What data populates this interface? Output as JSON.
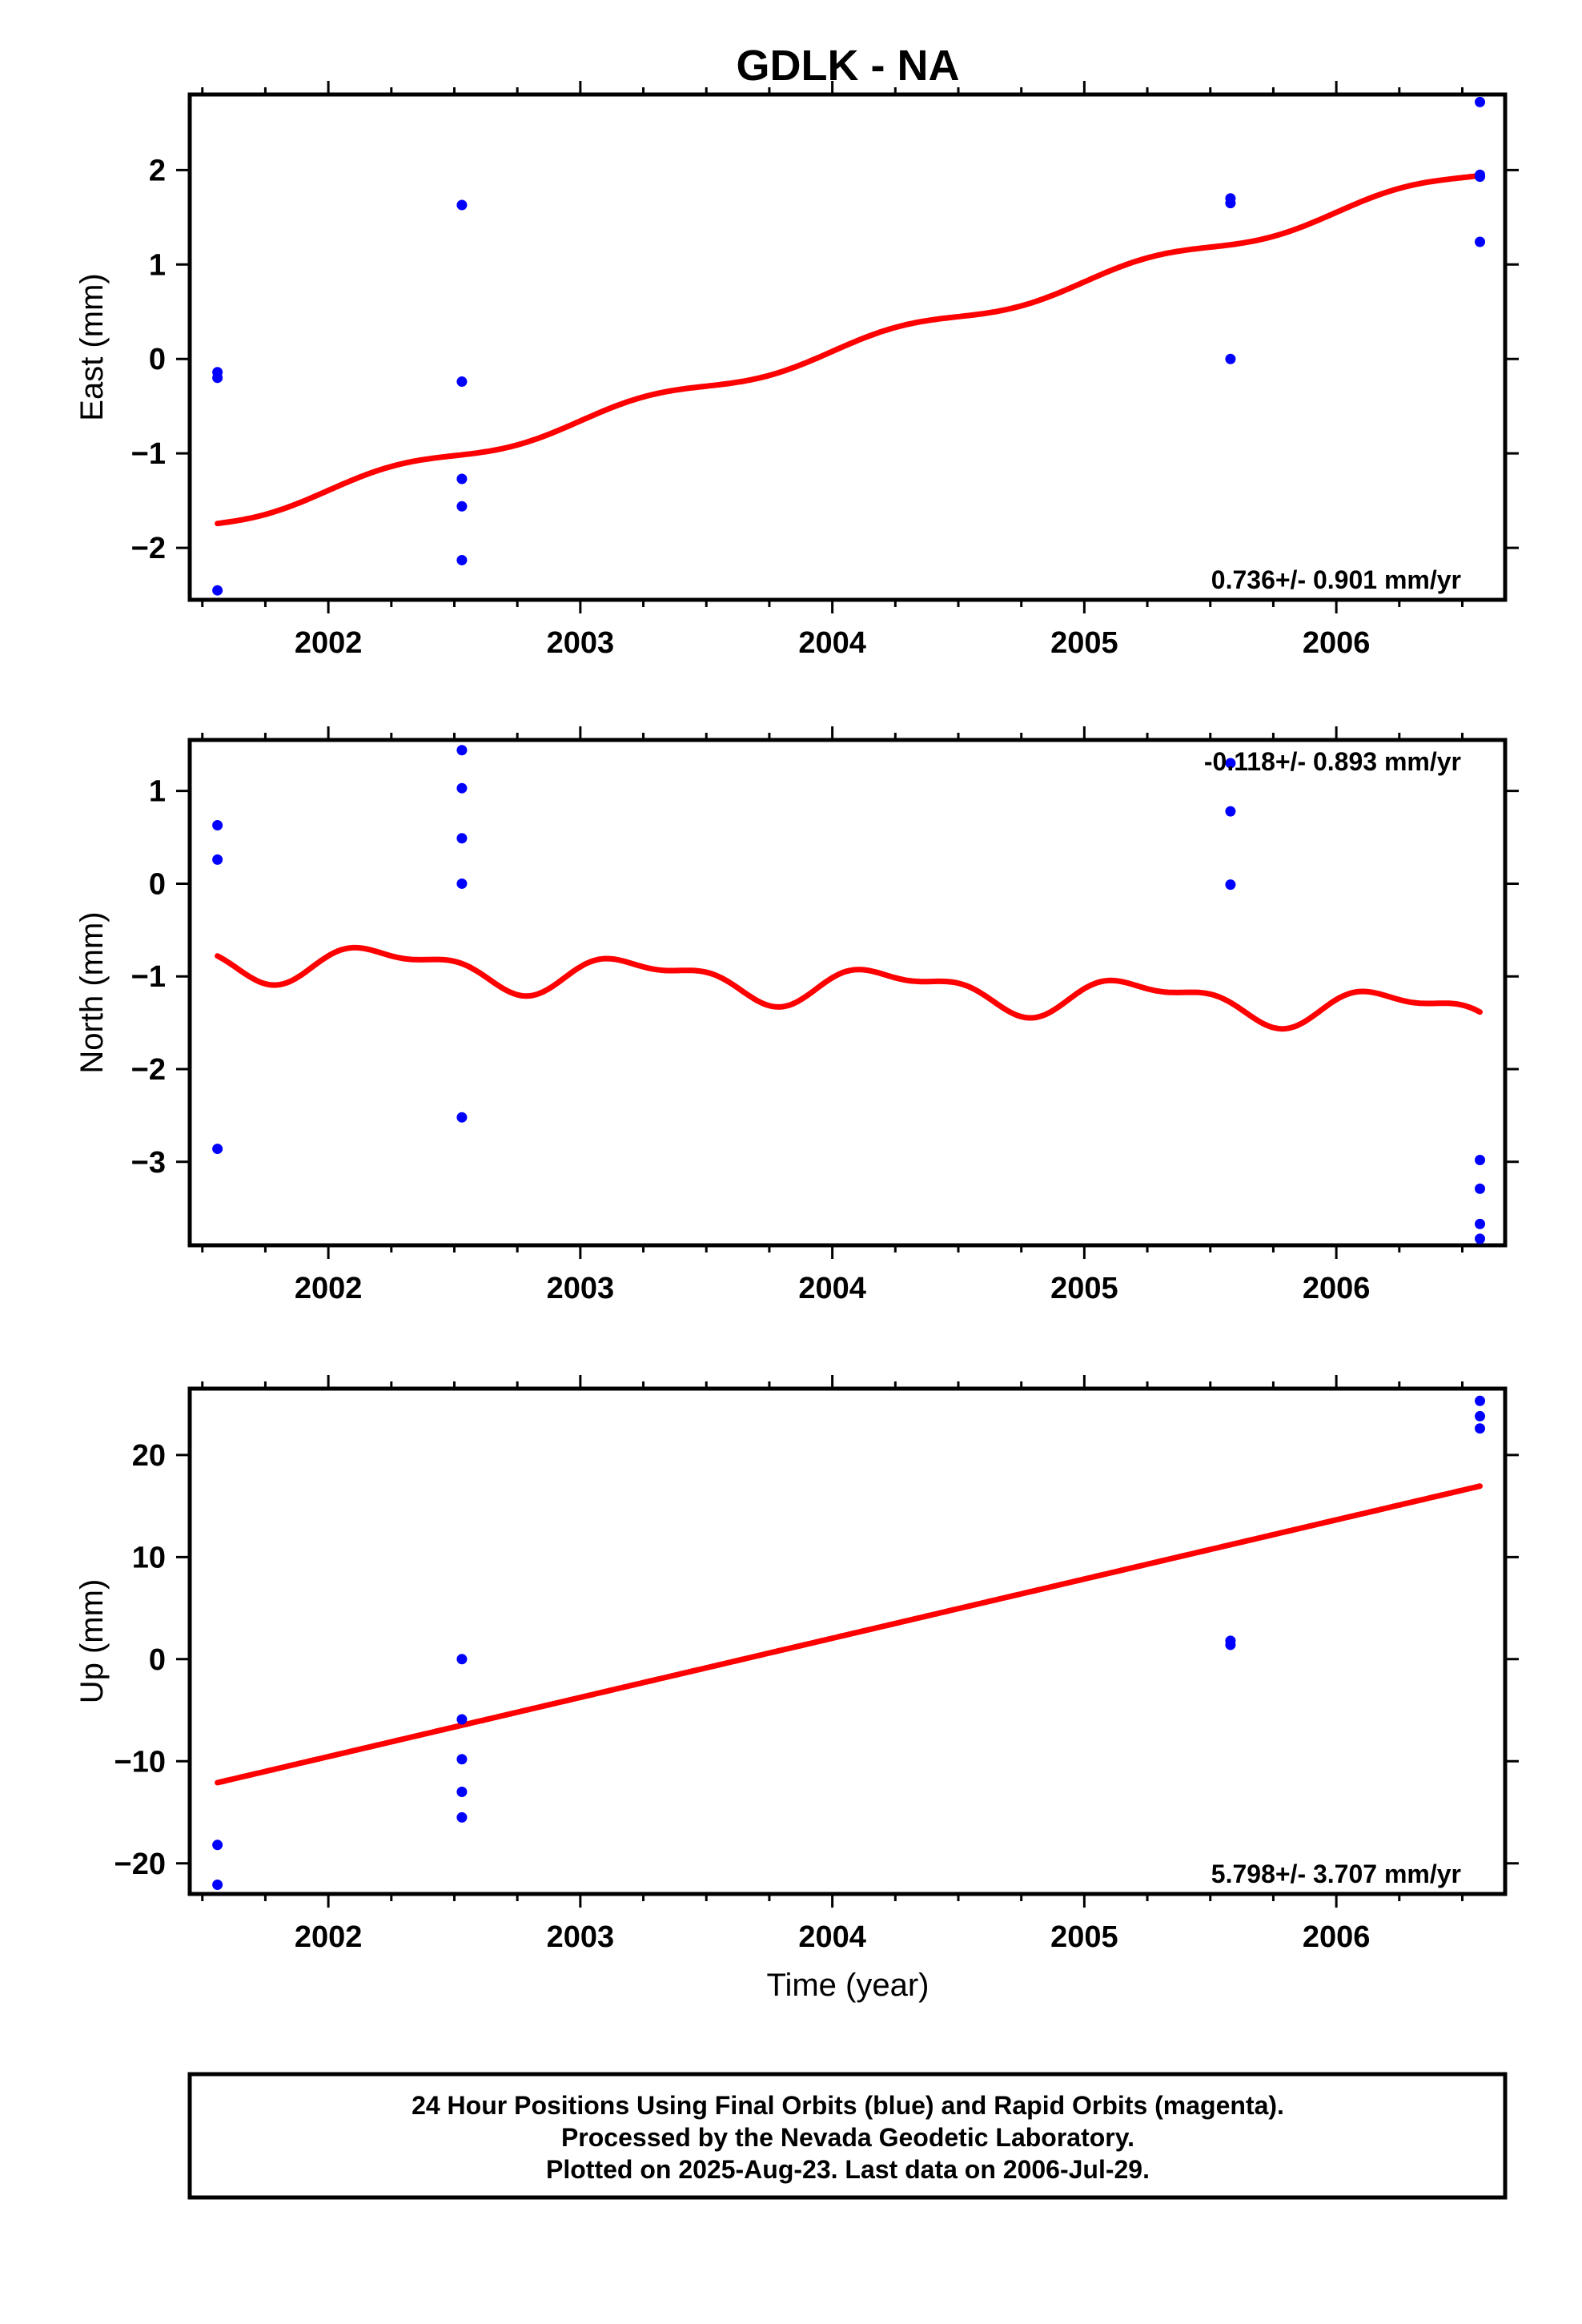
{
  "title": "GDLK - NA",
  "colors": {
    "points": "#0000ff",
    "model": "#ff0000",
    "frame": "#000000"
  },
  "x_axis": {
    "label": "Time (year)",
    "xlim": [
      2001.45,
      2006.67
    ],
    "ticks": [
      2002,
      2003,
      2004,
      2005,
      2006
    ],
    "tick_labels": [
      "2002",
      "2003",
      "2004",
      "2005",
      "2006"
    ]
  },
  "chart_data": [
    {
      "type": "scatter",
      "component": "east",
      "ylabel": "East (mm)",
      "ylim": [
        -2.55,
        2.8
      ],
      "yticks": [
        -2,
        -1,
        0,
        1,
        2
      ],
      "ytick_labels": [
        "−2",
        "−1",
        "0",
        "1",
        "2"
      ],
      "rate_label": "0.736+/- 0.901 mm/yr",
      "rate_position": "bottom-right",
      "points": {
        "x": [
          2001.56,
          2001.56,
          2001.56,
          2002.53,
          2002.53,
          2002.53,
          2002.53,
          2002.53,
          2005.58,
          2005.58,
          2005.58,
          2006.57,
          2006.57,
          2006.57,
          2006.57
        ],
        "y": [
          -0.14,
          -0.2,
          -2.45,
          1.63,
          -0.24,
          -1.27,
          -1.56,
          -2.13,
          1.7,
          1.65,
          0.0,
          2.72,
          1.95,
          1.93,
          1.24
        ]
      },
      "model": {
        "trend_rate": 0.736,
        "trend_value_at_2004": 0.08,
        "annual_amplitude": 0.07
      }
    },
    {
      "type": "scatter",
      "component": "north",
      "ylabel": "North (mm)",
      "ylim": [
        -3.9,
        1.55
      ],
      "yticks": [
        -3,
        -2,
        -1,
        0,
        1
      ],
      "ytick_labels": [
        "−3",
        "−2",
        "−1",
        "0",
        "1"
      ],
      "rate_label": "-0.118+/- 0.893 mm/yr",
      "rate_position": "top-right",
      "points": {
        "x": [
          2001.56,
          2001.56,
          2001.56,
          2002.53,
          2002.53,
          2002.53,
          2002.53,
          2002.53,
          2005.58,
          2005.58,
          2005.58,
          2006.57,
          2006.57,
          2006.57,
          2006.57
        ],
        "y": [
          0.63,
          0.26,
          -2.86,
          1.44,
          1.03,
          0.49,
          0.0,
          -2.52,
          1.3,
          0.78,
          -0.01,
          -2.98,
          -3.29,
          -3.67,
          -3.83
        ]
      },
      "model": {
        "trend_rate": -0.118,
        "trend_value_at_2004": -1.09,
        "annual_amplitude": 0.18,
        "semiannual_amplitude": 0.09
      }
    },
    {
      "type": "scatter",
      "component": "up",
      "ylabel": "Up (mm)",
      "ylim": [
        -23,
        26.5
      ],
      "yticks": [
        -20,
        -10,
        0,
        10,
        20
      ],
      "ytick_labels": [
        "−20",
        "−10",
        "0",
        "10",
        "20"
      ],
      "rate_label": "5.798+/- 3.707 mm/yr",
      "rate_position": "bottom-right",
      "points": {
        "x": [
          2001.56,
          2001.56,
          2002.53,
          2002.53,
          2002.53,
          2002.53,
          2002.53,
          2005.58,
          2005.58,
          2006.57,
          2006.57,
          2006.57
        ],
        "y": [
          -18.2,
          -22.1,
          0.0,
          -5.9,
          -9.8,
          -13.0,
          -15.5,
          1.8,
          1.4,
          25.3,
          23.8,
          22.6
        ]
      },
      "model": {
        "trend_rate": 5.798,
        "trend_value_at_2004": 2.05,
        "annual_amplitude": 0
      }
    }
  ],
  "caption": {
    "line1": "24 Hour Positions Using Final Orbits (blue) and Rapid Orbits (magenta).",
    "line2": "Processed by the Nevada Geodetic Laboratory.",
    "line3": "Plotted on 2025-Aug-23. Last data on 2006-Jul-29."
  }
}
